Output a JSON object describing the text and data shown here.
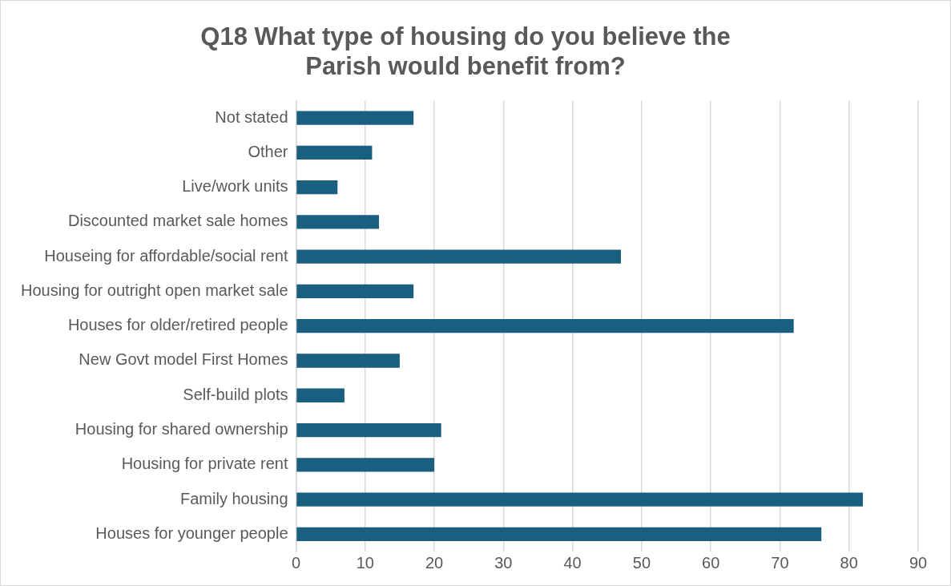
{
  "chart_data": {
    "type": "bar",
    "orientation": "horizontal",
    "title": "Q18 What type of housing do you believe the Parish would benefit from?",
    "categories": [
      "Not stated",
      "Other",
      "Live/work units",
      "Discounted market sale homes",
      "Houseing for affordable/social rent",
      "Housing for outright open market sale",
      "Houses for older/retired people",
      "New Govt model First Homes",
      "Self-build plots",
      "Housing for shared ownership",
      "Housing for private rent",
      "Family housing",
      "Houses for younger people"
    ],
    "values": [
      17,
      11,
      6,
      12,
      47,
      17,
      72,
      15,
      7,
      21,
      20,
      82,
      76
    ],
    "color": "#1a5e80",
    "xlim": [
      0,
      90
    ],
    "xticks": [
      0,
      10,
      20,
      30,
      40,
      50,
      60,
      70,
      80,
      90
    ],
    "grid": "x",
    "legend": false
  }
}
